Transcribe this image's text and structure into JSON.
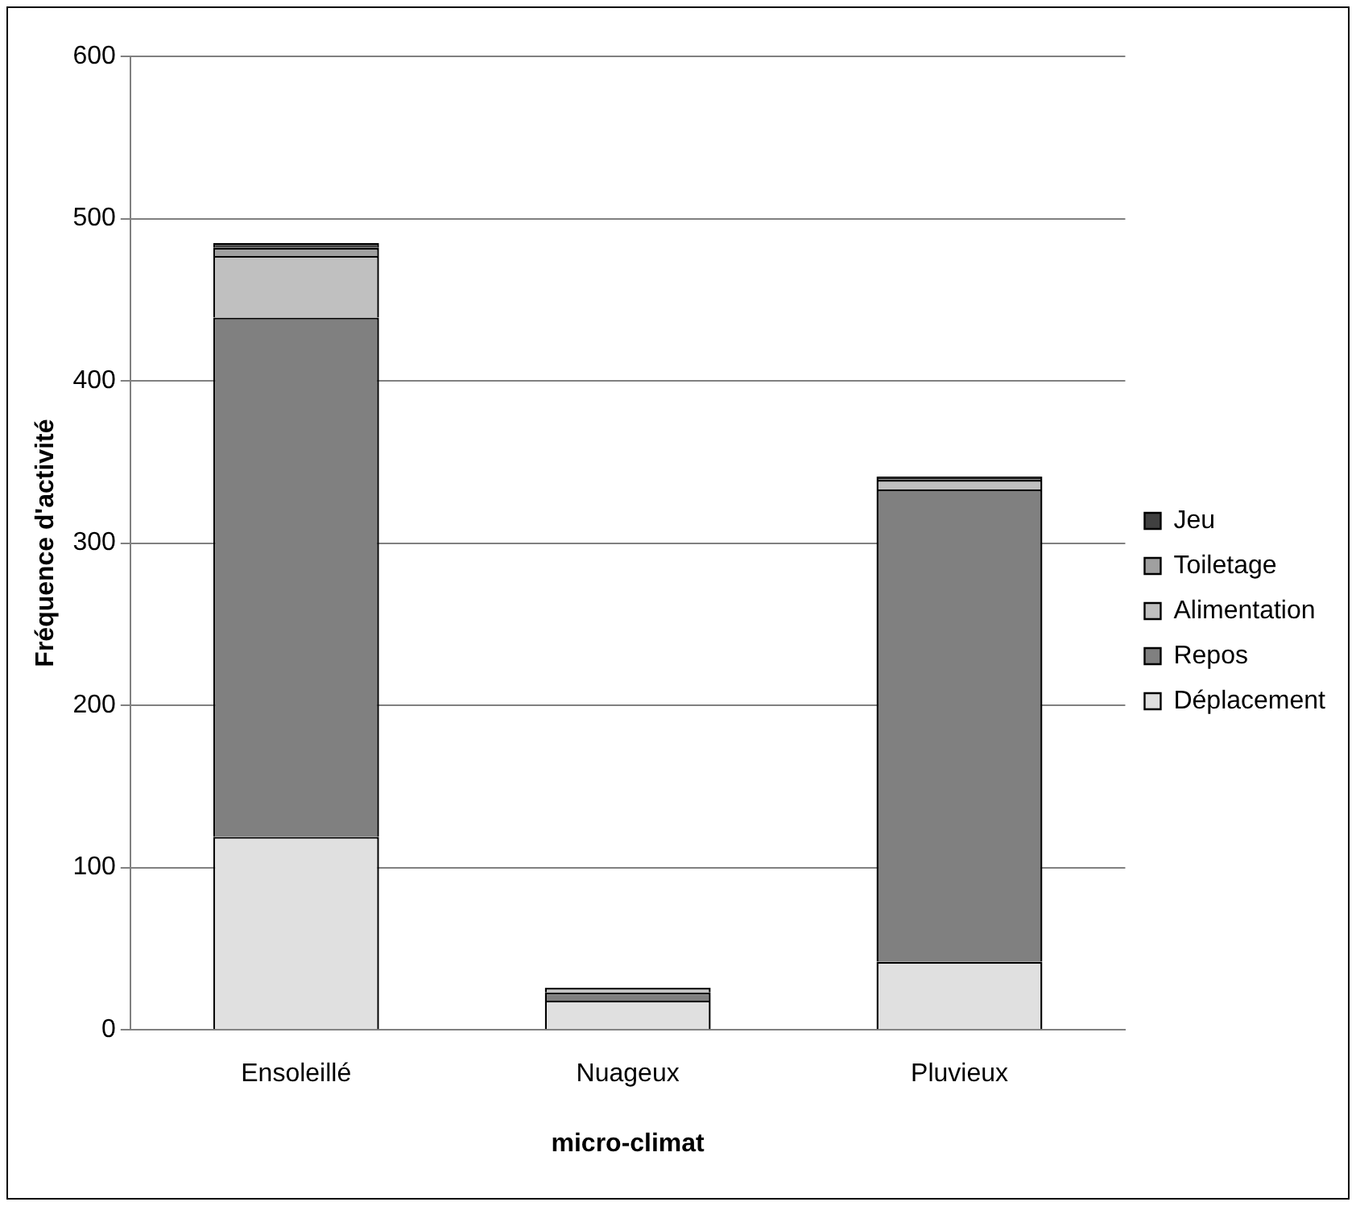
{
  "chart_data": {
    "type": "bar",
    "xlabel": "micro-climat",
    "ylabel": "Fréquence d'activité",
    "categories": [
      "Ensoleillé",
      "Nuageux",
      "Pluvieux"
    ],
    "stacked": true,
    "series": [
      {
        "name": "Déplacement",
        "color": "#e0e0e0",
        "values": [
          119,
          18,
          42
        ]
      },
      {
        "name": "Repos",
        "color": "#808080",
        "values": [
          320,
          5,
          291
        ]
      },
      {
        "name": "Alimentation",
        "color": "#c0c0c0",
        "values": [
          38,
          3,
          6
        ]
      },
      {
        "name": "Toiletage",
        "color": "#a0a0a0",
        "values": [
          5,
          0,
          1
        ]
      },
      {
        "name": "Jeu",
        "color": "#404040",
        "values": [
          3,
          0,
          1
        ]
      }
    ],
    "ylim": [
      0,
      600
    ],
    "yticks": [
      0,
      100,
      200,
      300,
      400,
      500,
      600
    ],
    "grid": "y",
    "legend": "right"
  }
}
